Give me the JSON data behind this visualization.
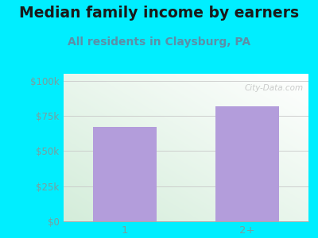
{
  "title": "Median family income by earners",
  "subtitle": "All residents in Claysburg, PA",
  "categories": [
    "1",
    "2+"
  ],
  "values": [
    67000,
    82000
  ],
  "bar_color": "#b39ddb",
  "background_outer": "#00eeff",
  "yticks": [
    0,
    25000,
    50000,
    75000,
    100000
  ],
  "ytick_labels": [
    "$0",
    "$25k",
    "$50k",
    "$75k",
    "$100k"
  ],
  "ylim": [
    0,
    105000
  ],
  "title_fontsize": 13.5,
  "subtitle_fontsize": 10,
  "subtitle_color": "#5b8fa8",
  "tick_color": "#7a9e9f",
  "watermark": "City-Data.com"
}
